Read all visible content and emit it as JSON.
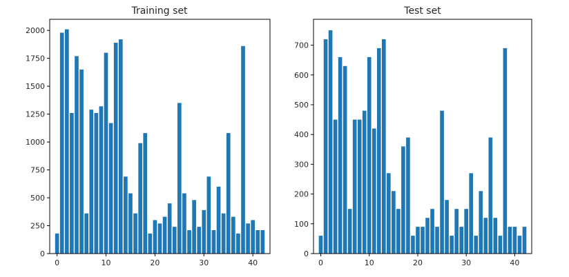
{
  "chart_data": [
    {
      "type": "bar",
      "title": "Training set",
      "xlabel": "",
      "ylabel": "",
      "xlim": [
        -1.5,
        43.5
      ],
      "ylim": [
        0,
        2100
      ],
      "xticks": [
        0,
        10,
        20,
        30,
        40
      ],
      "yticks": [
        0,
        250,
        500,
        750,
        1000,
        1250,
        1500,
        1750,
        2000
      ],
      "bar_color": "#1f77b4",
      "x": [
        0,
        1,
        2,
        3,
        4,
        5,
        6,
        7,
        8,
        9,
        10,
        11,
        12,
        13,
        14,
        15,
        16,
        17,
        18,
        19,
        20,
        21,
        22,
        23,
        24,
        25,
        26,
        27,
        28,
        29,
        30,
        31,
        32,
        33,
        34,
        35,
        36,
        37,
        38,
        39,
        40,
        41,
        42
      ],
      "values": [
        180,
        1980,
        2010,
        1260,
        1770,
        1650,
        360,
        1290,
        1260,
        1320,
        1800,
        1170,
        1890,
        1920,
        690,
        540,
        360,
        990,
        1080,
        180,
        300,
        270,
        330,
        450,
        240,
        1350,
        540,
        210,
        480,
        240,
        390,
        690,
        210,
        600,
        360,
        1080,
        330,
        180,
        1860,
        270,
        300,
        210,
        210
      ]
    },
    {
      "type": "bar",
      "title": "Test set",
      "xlabel": "",
      "ylabel": "",
      "xlim": [
        -1.5,
        43.5
      ],
      "ylim": [
        0,
        787
      ],
      "xticks": [
        0,
        10,
        20,
        30,
        40
      ],
      "yticks": [
        0,
        100,
        200,
        300,
        400,
        500,
        600,
        700
      ],
      "bar_color": "#1f77b4",
      "x": [
        0,
        1,
        2,
        3,
        4,
        5,
        6,
        7,
        8,
        9,
        10,
        11,
        12,
        13,
        14,
        15,
        16,
        17,
        18,
        19,
        20,
        21,
        22,
        23,
        24,
        25,
        26,
        27,
        28,
        29,
        30,
        31,
        32,
        33,
        34,
        35,
        36,
        37,
        38,
        39,
        40,
        41,
        42
      ],
      "values": [
        60,
        720,
        750,
        450,
        660,
        630,
        150,
        450,
        450,
        480,
        660,
        420,
        690,
        720,
        270,
        210,
        150,
        360,
        390,
        60,
        90,
        90,
        120,
        150,
        90,
        480,
        180,
        60,
        150,
        90,
        150,
        270,
        60,
        210,
        120,
        390,
        120,
        60,
        690,
        90,
        90,
        60,
        90
      ]
    }
  ]
}
